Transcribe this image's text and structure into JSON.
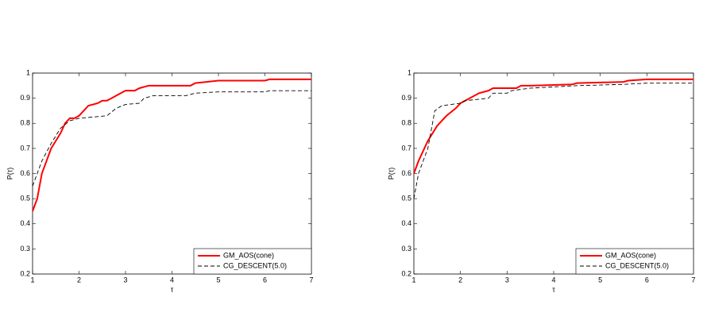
{
  "chart_data": [
    {
      "type": "line",
      "xlabel": "τ",
      "ylabel": "P(τ)",
      "xlim": [
        1,
        7
      ],
      "ylim": [
        0.2,
        1
      ],
      "xticks": [
        1,
        2,
        3,
        4,
        5,
        6,
        7
      ],
      "yticks": [
        0.2,
        0.3,
        0.4,
        0.5,
        0.6,
        0.7,
        0.8,
        0.9,
        1
      ],
      "legend": "lower right",
      "series": [
        {
          "name": "GM_AOS(cone)",
          "color": "#ff0000",
          "linestyle": "solid",
          "x": [
            1,
            1.1,
            1.2,
            1.3,
            1.4,
            1.5,
            1.6,
            1.7,
            1.8,
            1.9,
            2.0,
            2.1,
            2.2,
            2.4,
            2.5,
            2.6,
            2.7,
            2.9,
            3.0,
            3.2,
            3.3,
            3.5,
            4.4,
            4.5,
            5.0,
            6.0,
            6.1,
            7
          ],
          "values": [
            0.45,
            0.5,
            0.6,
            0.65,
            0.7,
            0.73,
            0.76,
            0.8,
            0.82,
            0.82,
            0.83,
            0.85,
            0.87,
            0.88,
            0.89,
            0.89,
            0.9,
            0.92,
            0.93,
            0.93,
            0.94,
            0.95,
            0.95,
            0.96,
            0.97,
            0.97,
            0.975,
            0.975
          ]
        },
        {
          "name": "CG_DESCENT(5.0)",
          "color": "#000000",
          "linestyle": "dashed",
          "x": [
            1,
            1.2,
            1.4,
            1.6,
            1.8,
            2.0,
            2.6,
            2.8,
            3.0,
            3.3,
            3.4,
            3.6,
            4.3,
            4.5,
            5.0,
            6.0,
            6.1,
            7
          ],
          "values": [
            0.55,
            0.65,
            0.72,
            0.78,
            0.81,
            0.82,
            0.83,
            0.86,
            0.875,
            0.88,
            0.9,
            0.91,
            0.91,
            0.92,
            0.925,
            0.925,
            0.93,
            0.93
          ]
        }
      ]
    },
    {
      "type": "line",
      "xlabel": "τ",
      "ylabel": "P(τ)",
      "xlim": [
        1,
        7
      ],
      "ylim": [
        0.2,
        1
      ],
      "xticks": [
        1,
        2,
        3,
        4,
        5,
        6,
        7
      ],
      "yticks": [
        0.2,
        0.3,
        0.4,
        0.5,
        0.6,
        0.7,
        0.8,
        0.9,
        1
      ],
      "legend": "lower right",
      "series": [
        {
          "name": "GM_AOS(cone)",
          "color": "#ff0000",
          "linestyle": "solid",
          "x": [
            1,
            1.1,
            1.3,
            1.5,
            1.7,
            1.9,
            2.0,
            2.2,
            2.4,
            2.6,
            2.7,
            3.2,
            3.3,
            3.5,
            4.4,
            4.5,
            5.5,
            5.6,
            6.0,
            7
          ],
          "values": [
            0.6,
            0.65,
            0.73,
            0.79,
            0.83,
            0.86,
            0.88,
            0.9,
            0.92,
            0.93,
            0.94,
            0.94,
            0.95,
            0.95,
            0.955,
            0.96,
            0.965,
            0.97,
            0.975,
            0.975
          ]
        },
        {
          "name": "CG_DESCENT(5.0)",
          "color": "#000000",
          "linestyle": "dashed",
          "x": [
            1,
            1.1,
            1.3,
            1.45,
            1.6,
            2.0,
            2.1,
            2.6,
            2.7,
            3.0,
            3.1,
            3.5,
            4.0,
            4.5,
            5.5,
            6.0,
            7
          ],
          "values": [
            0.5,
            0.6,
            0.7,
            0.85,
            0.87,
            0.88,
            0.89,
            0.9,
            0.92,
            0.92,
            0.93,
            0.94,
            0.945,
            0.95,
            0.955,
            0.96,
            0.96
          ]
        }
      ]
    }
  ]
}
